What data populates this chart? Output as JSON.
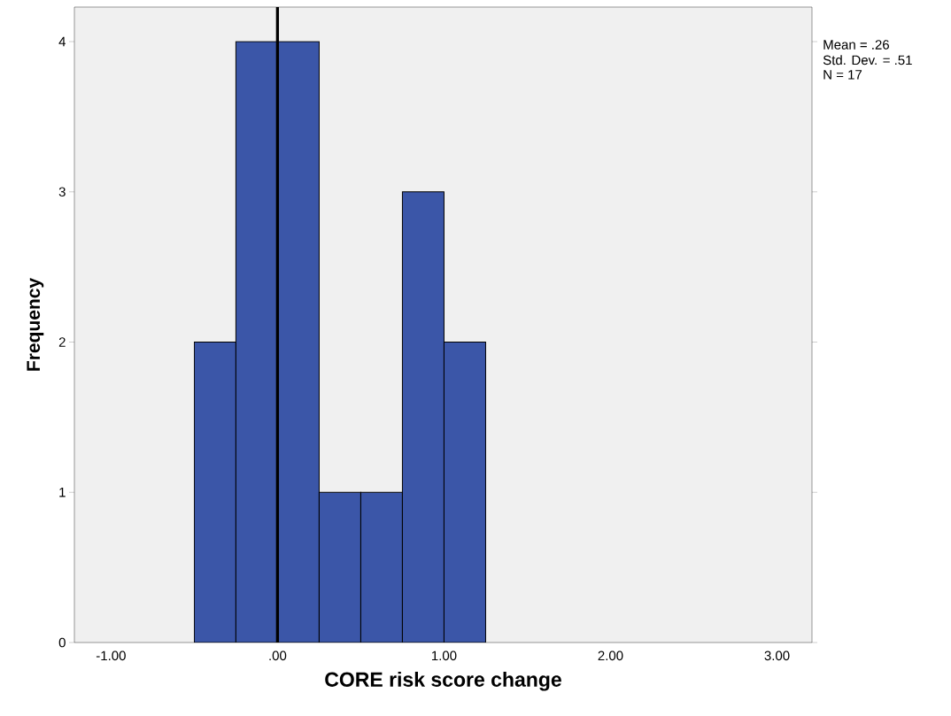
{
  "chart_data": {
    "type": "histogram",
    "xlabel": "CORE risk score change",
    "ylabel": "Frequency",
    "bins": [
      -0.5,
      -0.25,
      0,
      0.25,
      0.5,
      0.75,
      1.0,
      1.25
    ],
    "values": [
      2,
      4,
      4,
      1,
      1,
      3,
      2
    ],
    "color": "#3b56a8",
    "xlim": [
      -1.22,
      3.21
    ],
    "ylim": [
      0,
      4.23
    ],
    "xticks": [
      {
        "value": -1,
        "label": "-1.00"
      },
      {
        "value": 0,
        "label": ".00"
      },
      {
        "value": 1,
        "label": "1.00"
      },
      {
        "value": 2,
        "label": "2.00"
      },
      {
        "value": 3,
        "label": "3.00"
      }
    ],
    "yticks": [
      0,
      1,
      2,
      3,
      4
    ],
    "ref_lines": [
      {
        "axis": "x",
        "value": 0,
        "color": "#000000"
      }
    ],
    "annotations": [
      "Mean = .26",
      "Std. Dev. = .51",
      "N = 17"
    ]
  }
}
